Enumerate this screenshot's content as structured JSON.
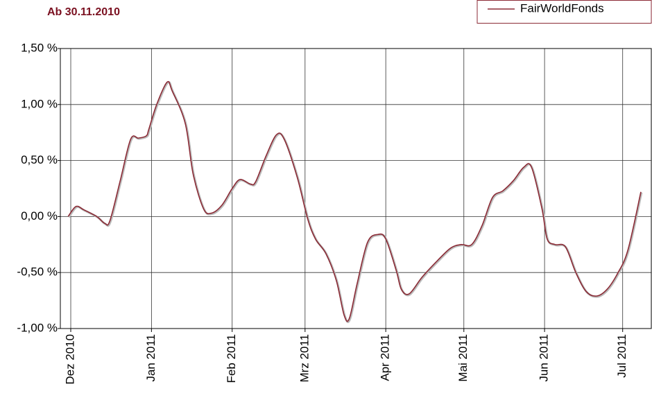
{
  "chart_data": {
    "type": "line",
    "title": "Ab 30.11.2010",
    "x": [
      "2010-11-30",
      "2010-12-03",
      "2010-12-06",
      "2010-12-11",
      "2010-12-14",
      "2010-12-16",
      "2010-12-20",
      "2010-12-24",
      "2010-12-27",
      "2010-12-30",
      "2010-12-31",
      "2011-01-03",
      "2011-01-07",
      "2011-01-09",
      "2011-01-14",
      "2011-01-17",
      "2011-01-21",
      "2011-01-24",
      "2011-01-28",
      "2011-02-01",
      "2011-02-04",
      "2011-02-08",
      "2011-02-10",
      "2011-02-14",
      "2011-02-18",
      "2011-02-21",
      "2011-02-26",
      "2011-03-02",
      "2011-03-05",
      "2011-03-09",
      "2011-03-13",
      "2011-03-16",
      "2011-03-18",
      "2011-03-21",
      "2011-03-25",
      "2011-03-29",
      "2011-04-01",
      "2011-04-05",
      "2011-04-07",
      "2011-04-10",
      "2011-04-15",
      "2011-04-21",
      "2011-04-26",
      "2011-04-30",
      "2011-05-04",
      "2011-05-08",
      "2011-05-12",
      "2011-05-16",
      "2011-05-20",
      "2011-05-24",
      "2011-05-27",
      "2011-05-31",
      "2011-06-02",
      "2011-06-05",
      "2011-06-09",
      "2011-06-13",
      "2011-06-17",
      "2011-06-21",
      "2011-06-25",
      "2011-06-29",
      "2011-07-03",
      "2011-07-08"
    ],
    "series": [
      {
        "name": "FairWorldFonds",
        "color": "#8b2a35",
        "values": [
          0.0,
          0.09,
          0.06,
          0.0,
          -0.06,
          -0.04,
          0.32,
          0.69,
          0.7,
          0.72,
          0.78,
          1.0,
          1.2,
          1.12,
          0.83,
          0.38,
          0.07,
          0.03,
          0.1,
          0.25,
          0.33,
          0.29,
          0.31,
          0.54,
          0.73,
          0.69,
          0.35,
          -0.02,
          -0.2,
          -0.33,
          -0.57,
          -0.88,
          -0.91,
          -0.6,
          -0.23,
          -0.16,
          -0.2,
          -0.48,
          -0.65,
          -0.69,
          -0.54,
          -0.39,
          -0.28,
          -0.25,
          -0.25,
          -0.08,
          0.17,
          0.23,
          0.32,
          0.44,
          0.44,
          0.07,
          -0.2,
          -0.25,
          -0.27,
          -0.5,
          -0.67,
          -0.71,
          -0.65,
          -0.51,
          -0.3,
          0.22
        ]
      }
    ],
    "xlim": [
      "2010-11-27",
      "2011-07-12"
    ],
    "xticks": [
      {
        "value": "2010-12-01",
        "label": "Dez 2010"
      },
      {
        "value": "2011-01-01",
        "label": "Jan 2011"
      },
      {
        "value": "2011-02-01",
        "label": "Feb 2011"
      },
      {
        "value": "2011-03-01",
        "label": "Mrz 2011"
      },
      {
        "value": "2011-04-01",
        "label": "Apr 2011"
      },
      {
        "value": "2011-05-01",
        "label": "Mai 2011"
      },
      {
        "value": "2011-06-01",
        "label": "Jun 2011"
      },
      {
        "value": "2011-07-01",
        "label": "Jul 2011"
      }
    ],
    "ylim": [
      -1,
      1.5
    ],
    "yticks": [
      {
        "value": -1,
        "label": "-1,00 %"
      },
      {
        "value": -0.5,
        "label": "-0,50 %"
      },
      {
        "value": 0,
        "label": "0,00 %"
      },
      {
        "value": 0.5,
        "label": "0,50 %"
      },
      {
        "value": 1,
        "label": "1,00 %"
      },
      {
        "value": 1.5,
        "label": "1,50 %"
      }
    ],
    "grid": true,
    "legend": "top-right"
  }
}
